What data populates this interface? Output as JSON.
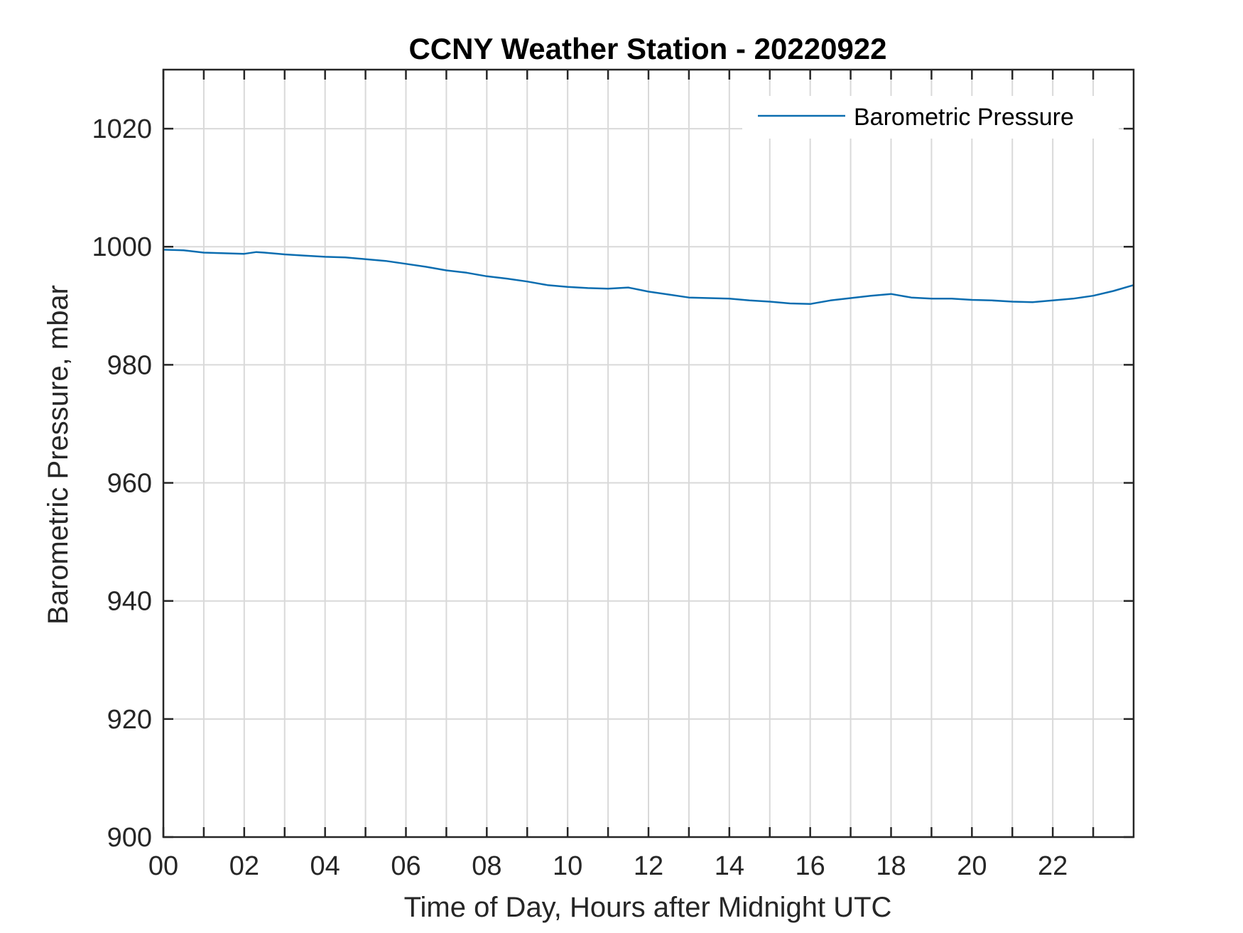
{
  "colors": {
    "series": "#0b6db0",
    "grid": "#d9d9d9",
    "axis": "#262626",
    "background": "#ffffff"
  },
  "chart_data": {
    "type": "line",
    "title": "CCNY Weather Station - 20220922",
    "xlabel": "Time of Day, Hours after Midnight UTC",
    "ylabel": "Barometric Pressure, mbar",
    "xlim": [
      0,
      24
    ],
    "ylim": [
      900,
      1030
    ],
    "x_ticks": [
      0,
      2,
      4,
      6,
      8,
      10,
      12,
      14,
      16,
      18,
      20,
      22
    ],
    "x_tick_labels": [
      "00",
      "02",
      "04",
      "06",
      "08",
      "10",
      "12",
      "14",
      "16",
      "18",
      "20",
      "22"
    ],
    "x_minor_ticks": [
      1,
      3,
      5,
      7,
      9,
      11,
      13,
      15,
      17,
      19,
      21,
      23
    ],
    "y_ticks": [
      900,
      920,
      940,
      960,
      980,
      1000,
      1020
    ],
    "y_tick_labels": [
      "900",
      "920",
      "940",
      "960",
      "980",
      "1000",
      "1020"
    ],
    "grid": true,
    "legend": "top-right",
    "series": [
      {
        "name": "Barometric Pressure",
        "x": [
          0,
          0.5,
          1,
          1.5,
          2,
          2.3,
          2.5,
          3,
          3.5,
          4,
          4.5,
          5,
          5.5,
          6,
          6.5,
          7,
          7.5,
          8,
          8.5,
          9,
          9.5,
          10,
          10.5,
          11,
          11.5,
          12,
          12.5,
          13,
          13.5,
          14,
          14.5,
          15,
          15.5,
          16,
          16.5,
          17,
          17.5,
          18,
          18.5,
          19,
          19.5,
          20,
          20.5,
          21,
          21.5,
          22,
          22.5,
          23,
          23.5,
          24
        ],
        "y": [
          999.5,
          999.4,
          999.0,
          998.9,
          998.8,
          999.1,
          999.0,
          998.7,
          998.5,
          998.3,
          998.2,
          997.9,
          997.6,
          997.1,
          996.6,
          996.0,
          995.6,
          995.0,
          994.6,
          994.1,
          993.5,
          993.2,
          993.0,
          992.9,
          993.1,
          992.4,
          991.9,
          991.4,
          991.3,
          991.2,
          990.9,
          990.7,
          990.4,
          990.3,
          990.9,
          991.3,
          991.7,
          992.0,
          991.4,
          991.2,
          991.2,
          991.0,
          990.9,
          990.7,
          990.6,
          990.9,
          991.2,
          991.7,
          992.5,
          993.5
        ]
      }
    ]
  }
}
